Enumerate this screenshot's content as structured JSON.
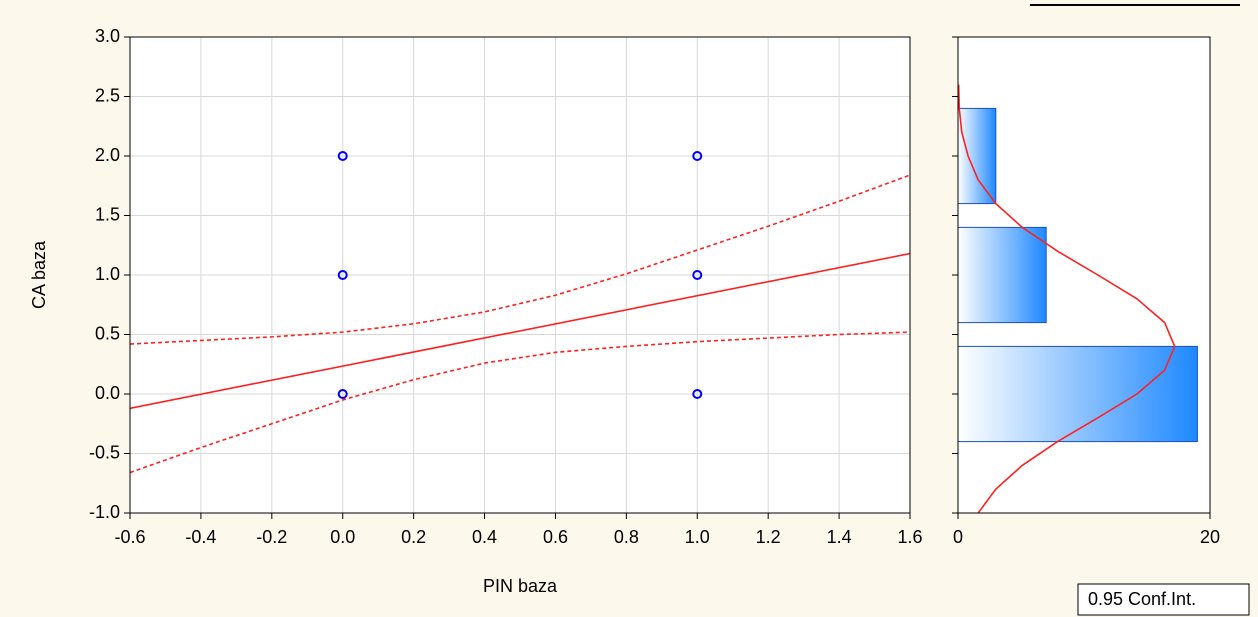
{
  "chart_data": [
    {
      "type": "scatter",
      "x_label": "PIN baza",
      "y_label": "CA baza",
      "xlim": [
        -0.6,
        1.6
      ],
      "ylim": [
        -1,
        3
      ],
      "xticks": [
        -0.6,
        -0.4,
        -0.2,
        {
          "value": 0,
          "label": "0.0"
        },
        0.2,
        0.4,
        0.6,
        0.8,
        {
          "value": 1,
          "label": "1.0"
        },
        1.2,
        1.4,
        1.6
      ],
      "yticks": [
        {
          "value": -1,
          "label": "-1.0"
        },
        -0.5,
        {
          "value": 0,
          "label": "0.0"
        },
        0.5,
        {
          "value": 1,
          "label": "1.0"
        },
        1.5,
        {
          "value": 2,
          "label": "2.0"
        },
        2.5,
        {
          "value": 3,
          "label": "3.0"
        }
      ],
      "grid": true,
      "points": {
        "x": [
          0,
          0,
          0,
          1,
          1,
          1
        ],
        "values": [
          0,
          1,
          2,
          0,
          1,
          2
        ],
        "color": "#0000ff"
      },
      "fit": {
        "x": [
          -0.6,
          1.6
        ],
        "values": [
          -0.12,
          1.18
        ],
        "color": "#ff2020"
      },
      "conf_int": {
        "name": "0.95 Conf.Int.",
        "color": "#ff2020",
        "x": [
          -0.6,
          -0.4,
          -0.2,
          0,
          0.2,
          0.4,
          0.6,
          0.8,
          1.0,
          1.2,
          1.4,
          1.6
        ],
        "upper": [
          0.42,
          0.45,
          0.48,
          0.52,
          0.59,
          0.69,
          0.83,
          1.01,
          1.21,
          1.41,
          1.62,
          1.84
        ],
        "lower": [
          -0.66,
          -0.45,
          -0.25,
          -0.05,
          0.12,
          0.26,
          0.35,
          0.4,
          0.44,
          0.47,
          0.5,
          0.52
        ]
      }
    },
    {
      "type": "histogram",
      "orientation": "horizontal",
      "bins_lower": [
        -0.4,
        0.6,
        1.6
      ],
      "bins_upper": [
        0.4,
        1.4,
        2.4
      ],
      "values": [
        19,
        7,
        3
      ],
      "color": "#1e88ff",
      "edge_color": "#1f4fbf",
      "xlim": [
        0,
        20
      ],
      "xticks": [
        0,
        20
      ],
      "ylim": [
        -1,
        3
      ],
      "curve": {
        "color": "#ff2020",
        "y": [
          -1.0,
          -0.8,
          -0.6,
          -0.4,
          -0.2,
          0,
          0.2,
          0.4,
          0.6,
          0.8,
          1.0,
          1.2,
          1.4,
          1.6,
          1.8,
          2.0,
          2.2,
          2.4,
          2.6
        ],
        "values": [
          1.6,
          3.0,
          5.1,
          7.9,
          11.1,
          14.2,
          16.4,
          17.2,
          16.4,
          14.2,
          11.1,
          7.9,
          5.1,
          3.0,
          1.6,
          0.8,
          0.3,
          0.1,
          0.05
        ]
      }
    }
  ]
}
